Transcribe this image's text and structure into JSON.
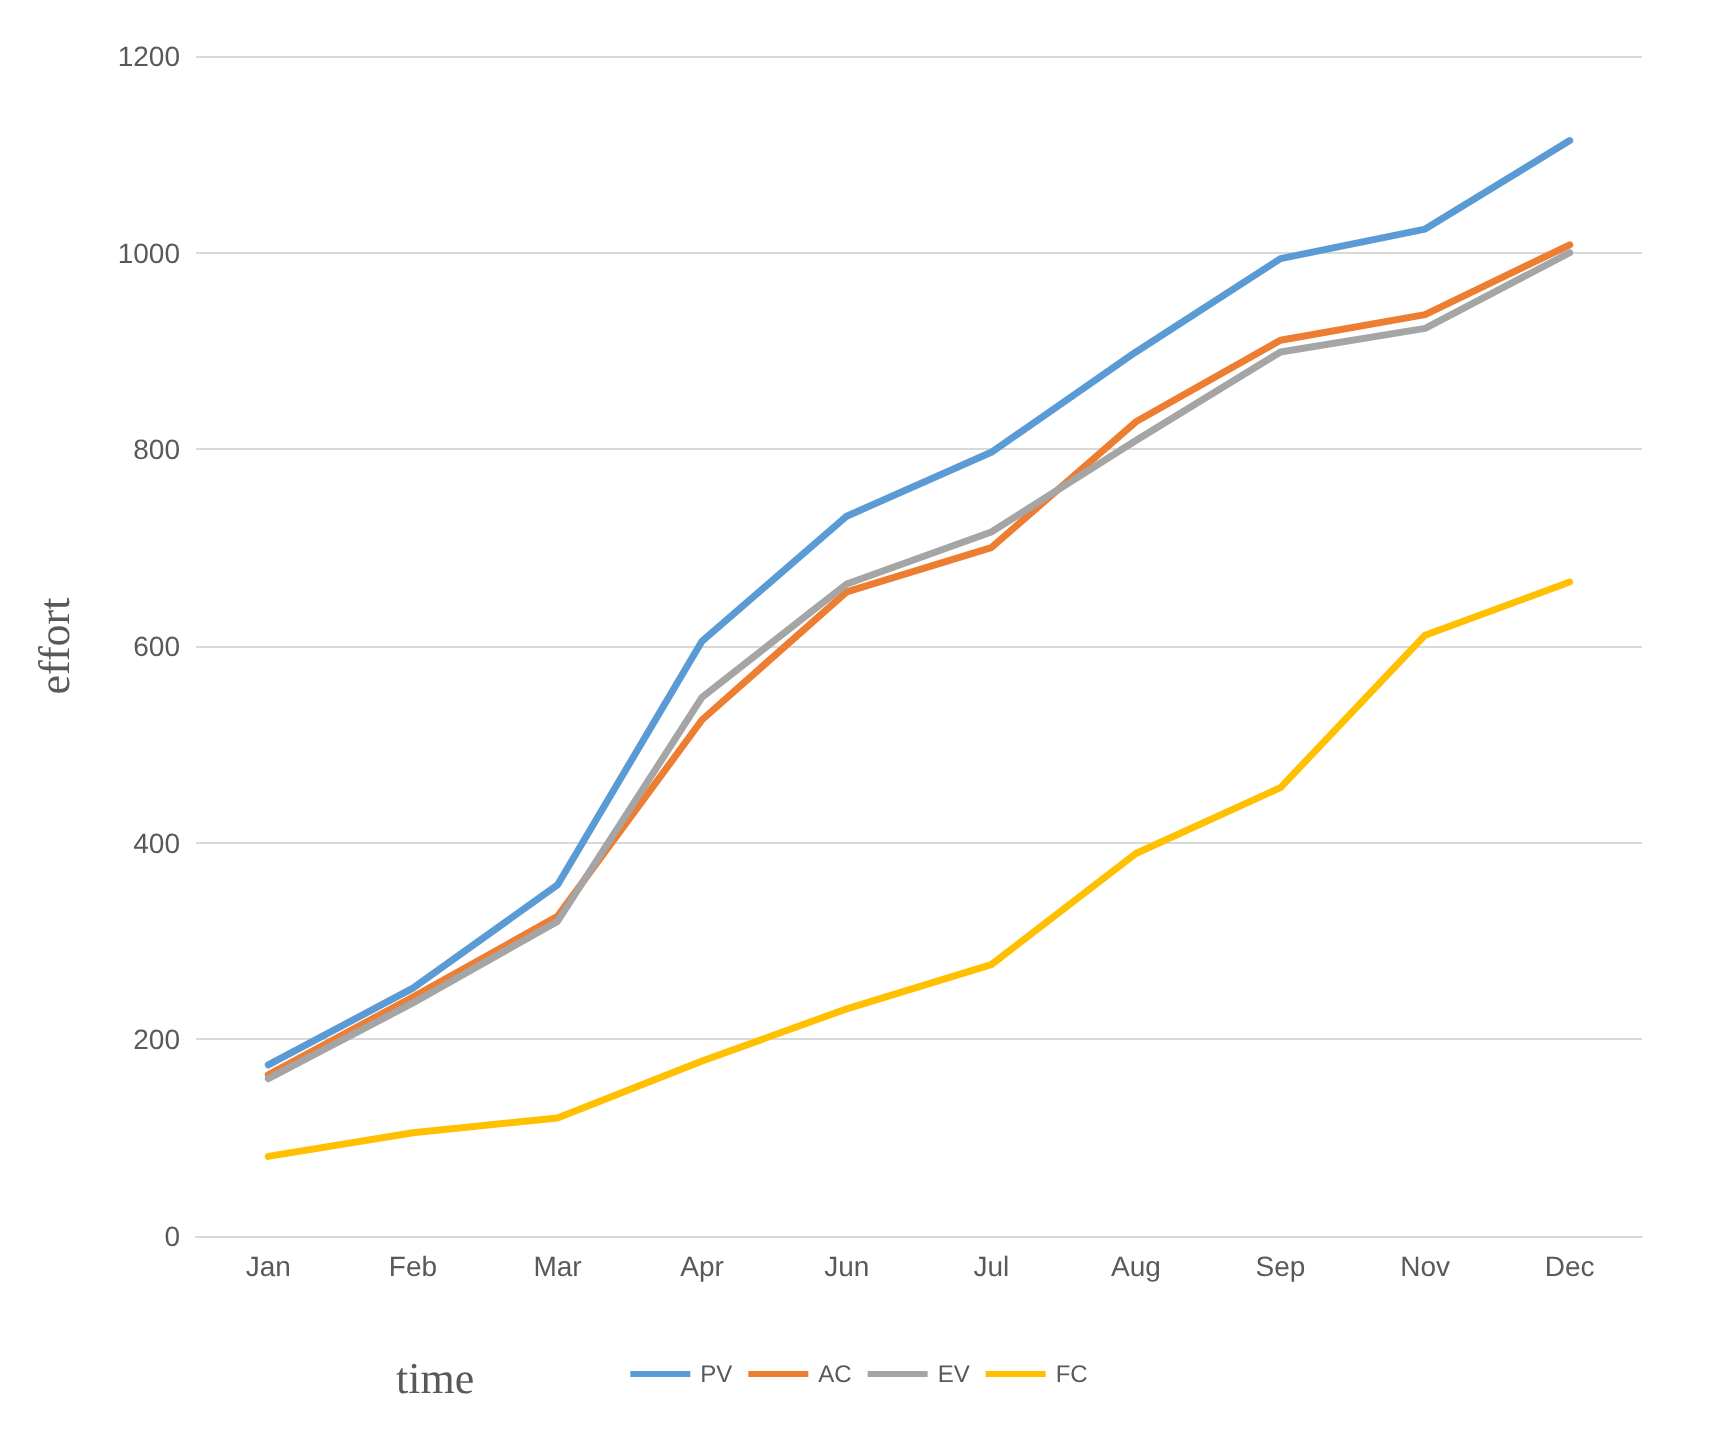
{
  "chart_data": {
    "type": "line",
    "xlabel": "time",
    "ylabel": "effort",
    "categories": [
      "Jan",
      "Feb",
      "Mar",
      "Apr",
      "Jun",
      "Jul",
      "Aug",
      "Sep",
      "Nov",
      "Dec"
    ],
    "series": [
      {
        "name": "PV",
        "color": "#5b9bd5",
        "values": [
          174,
          252,
          357,
          605,
          732,
          797,
          899,
          994,
          1024,
          1114
        ]
      },
      {
        "name": "AC",
        "color": "#ed7d31",
        "values": [
          164,
          243,
          325,
          525,
          655,
          700,
          828,
          911,
          937,
          1008
        ]
      },
      {
        "name": "EV",
        "color": "#a5a5a5",
        "values": [
          160,
          237,
          320,
          548,
          663,
          716,
          809,
          899,
          923,
          1000
        ]
      },
      {
        "name": "FC",
        "color": "#ffc000",
        "values": [
          81,
          105,
          120,
          178,
          231,
          276,
          389,
          456,
          611,
          665
        ]
      }
    ],
    "ylim": [
      0,
      1200
    ],
    "yticks": [
      0,
      200,
      400,
      600,
      800,
      1000,
      1200
    ],
    "grid": "y",
    "legend": "bottom",
    "marker": "none",
    "line_style": "solid"
  }
}
